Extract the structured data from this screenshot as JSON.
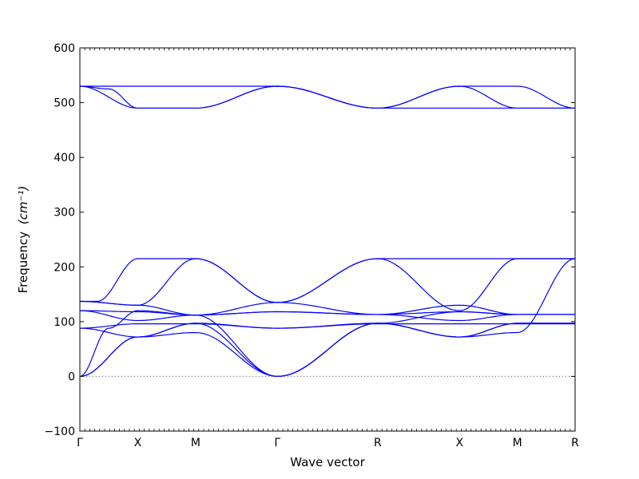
{
  "chart_data": {
    "type": "line",
    "xlabel": "Wave vector",
    "ylabel": "Frequency",
    "ylabel_unit": "(cm⁻¹)",
    "ylim": [
      -100,
      600
    ],
    "yticks": [
      -100,
      0,
      100,
      200,
      300,
      400,
      500,
      600
    ],
    "grid": false,
    "color": "#0000ff",
    "zero_line_color": "#555555",
    "x_ticks": [
      {
        "label": "Γ",
        "x": 0.0
      },
      {
        "label": "X",
        "x": 0.5
      },
      {
        "label": "M",
        "x": 1.0
      },
      {
        "label": "Γ",
        "x": 1.707
      },
      {
        "label": "R",
        "x": 2.573
      },
      {
        "label": "X",
        "x": 3.28
      },
      {
        "label": "M",
        "x": 3.78
      },
      {
        "label": "R",
        "x": 4.279
      }
    ],
    "xlim": [
      0,
      4.279
    ],
    "series": [
      {
        "points": [
          [
            0,
            530
          ],
          [
            0.5,
            530
          ],
          [
            1.0,
            530
          ],
          [
            1.707,
            530
          ],
          [
            2.573,
            490
          ],
          [
            3.28,
            530
          ],
          [
            3.78,
            530
          ],
          [
            4.279,
            490
          ]
        ]
      },
      {
        "points": [
          [
            0,
            530
          ],
          [
            0.5,
            490
          ],
          [
            1.0,
            490
          ],
          [
            1.707,
            530
          ],
          [
            2.573,
            490
          ],
          [
            3.28,
            530
          ],
          [
            3.78,
            490
          ],
          [
            4.279,
            490
          ]
        ]
      },
      {
        "points": [
          [
            0,
            530
          ],
          [
            0.25,
            525
          ],
          [
            0.5,
            490
          ],
          [
            1.0,
            490
          ],
          [
            1.707,
            530
          ],
          [
            2.573,
            490
          ],
          [
            3.28,
            490
          ],
          [
            3.78,
            490
          ],
          [
            4.279,
            490
          ]
        ]
      },
      {
        "points": [
          [
            0,
            137
          ],
          [
            0.15,
            137
          ],
          [
            0.5,
            215
          ],
          [
            1.0,
            215
          ],
          [
            1.707,
            135
          ],
          [
            2.573,
            215
          ],
          [
            3.28,
            215
          ],
          [
            3.78,
            215
          ],
          [
            4.279,
            215
          ]
        ]
      },
      {
        "points": [
          [
            0,
            137
          ],
          [
            0.5,
            130
          ],
          [
            1.0,
            215
          ],
          [
            1.707,
            135
          ],
          [
            2.573,
            215
          ],
          [
            3.28,
            120
          ],
          [
            3.78,
            215
          ],
          [
            4.279,
            215
          ]
        ]
      },
      {
        "points": [
          [
            0,
            137
          ],
          [
            0.5,
            130
          ],
          [
            1.0,
            112
          ],
          [
            1.707,
            135
          ],
          [
            2.573,
            113
          ],
          [
            3.28,
            130
          ],
          [
            3.78,
            113
          ],
          [
            4.279,
            113
          ]
        ]
      },
      {
        "points": [
          [
            0,
            120
          ],
          [
            0.5,
            118
          ],
          [
            1.0,
            112
          ],
          [
            1.707,
            118
          ],
          [
            2.573,
            113
          ],
          [
            3.28,
            118
          ],
          [
            3.78,
            113
          ],
          [
            4.279,
            113
          ]
        ]
      },
      {
        "points": [
          [
            0,
            120
          ],
          [
            0.5,
            102
          ],
          [
            1.0,
            112
          ],
          [
            1.707,
            118
          ],
          [
            2.573,
            113
          ],
          [
            3.28,
            102
          ],
          [
            3.78,
            113
          ],
          [
            4.279,
            113
          ]
        ]
      },
      {
        "points": [
          [
            0,
            88
          ],
          [
            0.5,
            72
          ],
          [
            1.0,
            97
          ],
          [
            1.707,
            88
          ],
          [
            2.573,
            97
          ],
          [
            3.28,
            72
          ],
          [
            3.78,
            97
          ],
          [
            4.279,
            97
          ]
        ]
      },
      {
        "points": [
          [
            0,
            88
          ],
          [
            0.5,
            96
          ],
          [
            1.0,
            96
          ],
          [
            1.707,
            88
          ],
          [
            2.573,
            96
          ],
          [
            3.28,
            96
          ],
          [
            3.78,
            96
          ],
          [
            4.279,
            96
          ]
        ]
      },
      {
        "points": [
          [
            0,
            0
          ],
          [
            0.5,
            72
          ],
          [
            1.0,
            97
          ],
          [
            1.707,
            0
          ],
          [
            2.573,
            97
          ],
          [
            3.28,
            72
          ],
          [
            3.78,
            80
          ],
          [
            4.279,
            215
          ]
        ]
      },
      {
        "points": [
          [
            0,
            0
          ],
          [
            0.5,
            72
          ],
          [
            1.0,
            80
          ],
          [
            1.707,
            0
          ],
          [
            2.573,
            97
          ],
          [
            3.28,
            72
          ],
          [
            3.78,
            97
          ],
          [
            4.279,
            97
          ]
        ]
      },
      {
        "points": [
          [
            0,
            0
          ],
          [
            0.25,
            88
          ],
          [
            0.5,
            120
          ],
          [
            1.0,
            112
          ],
          [
            1.707,
            0
          ],
          [
            2.573,
            97
          ],
          [
            3.28,
            118
          ],
          [
            3.78,
            113
          ],
          [
            4.279,
            113
          ]
        ]
      }
    ]
  }
}
